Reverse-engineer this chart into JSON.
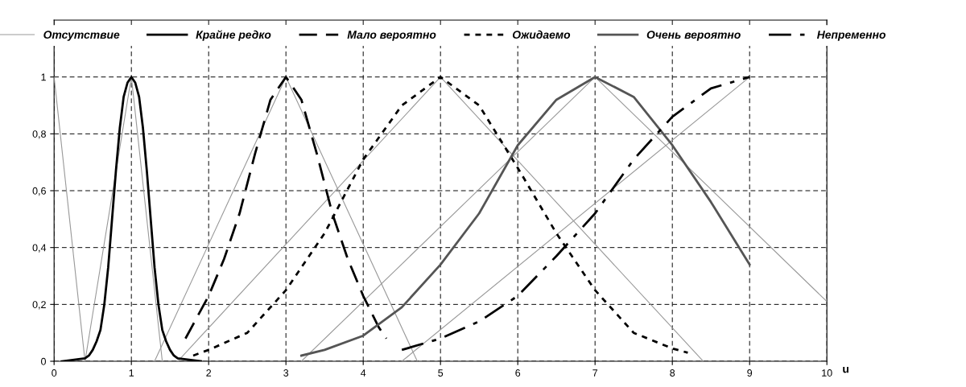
{
  "chart_data": {
    "type": "line",
    "xlabel": "u",
    "xlim": [
      0,
      10
    ],
    "ylim": [
      0,
      1.2
    ],
    "xticks": [
      0,
      1,
      2,
      3,
      4,
      5,
      6,
      7,
      8,
      9,
      10
    ],
    "yticks": [
      0,
      {
        "value": 0.2,
        "label": "0,2"
      },
      {
        "value": 0.4,
        "label": "0,4"
      },
      {
        "value": 0.6,
        "label": "0,6"
      },
      {
        "value": 0.8,
        "label": "0,8"
      },
      1
    ],
    "grid": true,
    "legend": "top",
    "marker": "none",
    "series": [
      {
        "name": "Отсутствие",
        "color": "#999999",
        "line_style": "solid",
        "x": [
          0,
          0.4
        ],
        "values": [
          1,
          0
        ]
      },
      {
        "color": "#999999",
        "line_style": "solid",
        "x": [
          0.4,
          1,
          1.4
        ],
        "values": [
          0,
          1,
          0
        ]
      },
      {
        "color": "#999999",
        "line_style": "solid",
        "x": [
          1.3,
          3,
          4.7
        ],
        "values": [
          0,
          1,
          0
        ]
      },
      {
        "color": "#999999",
        "line_style": "solid",
        "x": [
          1.6,
          5,
          8.4
        ],
        "values": [
          0,
          1,
          0
        ]
      },
      {
        "color": "#999999",
        "line_style": "solid",
        "x": [
          3.2,
          7,
          10
        ],
        "values": [
          0,
          1,
          0.21
        ]
      },
      {
        "color": "#999999",
        "line_style": "solid",
        "x": [
          4.5,
          9
        ],
        "values": [
          0,
          1
        ]
      },
      {
        "name": "Крайне редко",
        "color": "#000000",
        "line_style": "solid",
        "x": [
          0.1,
          0.4,
          0.45,
          0.5,
          0.55,
          0.6,
          0.65,
          0.7,
          0.75,
          0.8,
          0.85,
          0.9,
          0.95,
          1,
          1.05,
          1.1,
          1.15,
          1.2,
          1.25,
          1.3,
          1.35,
          1.4,
          1.45,
          1.5,
          1.55,
          1.6,
          1.9
        ],
        "values": [
          0,
          0.01,
          0.02,
          0.04,
          0.07,
          0.11,
          0.2,
          0.33,
          0.5,
          0.67,
          0.82,
          0.93,
          0.98,
          1,
          0.98,
          0.93,
          0.82,
          0.67,
          0.5,
          0.33,
          0.2,
          0.11,
          0.07,
          0.04,
          0.02,
          0.01,
          0
        ]
      },
      {
        "name": "Мало вероятно",
        "color": "#000000",
        "line_style": "dashed",
        "x": [
          1.7,
          1.8,
          1.9,
          2,
          2.2,
          2.4,
          2.6,
          2.8,
          3,
          3.2,
          3.4,
          3.6,
          3.8,
          4,
          4.2,
          4.3
        ],
        "values": [
          0.08,
          0.13,
          0.18,
          0.23,
          0.36,
          0.52,
          0.73,
          0.92,
          1,
          0.92,
          0.73,
          0.52,
          0.36,
          0.23,
          0.12,
          0.08
        ]
      },
      {
        "name": "Ожидаемо",
        "color": "#000000",
        "line_style": "dotted",
        "x": [
          1.8,
          2,
          2.5,
          3,
          3.5,
          4,
          4.5,
          5,
          5.5,
          6,
          6.5,
          7,
          7.5,
          8,
          8.2
        ],
        "values": [
          0.02,
          0.04,
          0.1,
          0.25,
          0.45,
          0.71,
          0.9,
          1,
          0.9,
          0.68,
          0.45,
          0.25,
          0.1,
          0.045,
          0.03
        ]
      },
      {
        "name": "Очень вероятно",
        "color": "#555555",
        "line_style": "solid",
        "x": [
          3.2,
          3.5,
          4,
          4.5,
          5,
          5.5,
          6,
          6.5,
          7,
          7.5,
          8,
          8.5,
          9
        ],
        "values": [
          0.02,
          0.04,
          0.09,
          0.19,
          0.34,
          0.52,
          0.76,
          0.92,
          1,
          0.93,
          0.76,
          0.56,
          0.34
        ]
      },
      {
        "name": "Непременно",
        "color": "#000000",
        "line_style": "dashdot",
        "x": [
          4.5,
          5,
          5.5,
          6,
          6.5,
          7,
          7.5,
          8,
          8.5,
          9
        ],
        "values": [
          0.04,
          0.08,
          0.14,
          0.23,
          0.37,
          0.52,
          0.71,
          0.86,
          0.96,
          1
        ]
      }
    ]
  }
}
